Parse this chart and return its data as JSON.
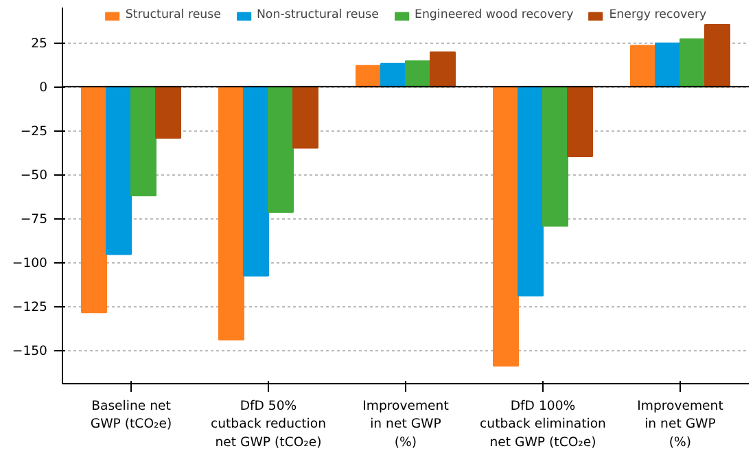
{
  "chart_data": {
    "type": "bar",
    "categories": [
      "Baseline net\nGWP (tCO₂e)",
      "DfD 50%\ncutback reduction\nnet GWP (tCO₂e)",
      "Improvement\nin net GWP\n(%)",
      "DfD 100%\ncutback elimination\nnet GWP (tCO₂e)",
      "Improvement\nin net GWP\n(%)"
    ],
    "series": [
      {
        "name": "Structural reuse",
        "color": "#ff7f1e",
        "values": [
          -128.5,
          -144,
          11.9,
          -158.8,
          23.3
        ]
      },
      {
        "name": "Non-structural reuse",
        "color": "#009ade",
        "values": [
          -95.4,
          -107.6,
          13.1,
          -118.9,
          24.7
        ]
      },
      {
        "name": "Engineered wood recovery",
        "color": "#44ac3a",
        "values": [
          -62,
          -71.4,
          14.5,
          -79.3,
          27
        ]
      },
      {
        "name": "Energy recovery",
        "color": "#b5470a",
        "values": [
          -29.2,
          -34.9,
          19.6,
          -39.7,
          35.2
        ]
      }
    ],
    "ylim": [
      -169,
      45
    ],
    "yticks": [
      -150,
      -125,
      -100,
      -75,
      -50,
      -25,
      0,
      25
    ],
    "grid": "y",
    "legend": "top",
    "ref_lines": [
      {
        "axis": "y",
        "value": 0,
        "color": "#000000"
      }
    ]
  }
}
